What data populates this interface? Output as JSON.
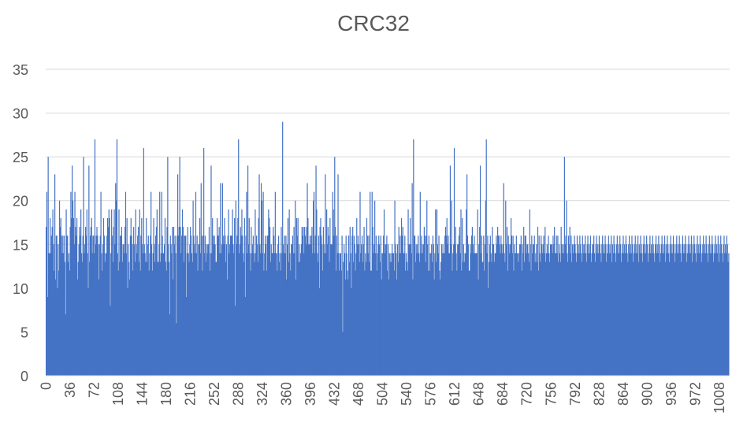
{
  "chart_data": {
    "type": "bar",
    "title": "CRC32",
    "xlabel": "",
    "ylabel": "",
    "ylim": [
      0,
      35
    ],
    "yticks": [
      0,
      5,
      10,
      15,
      20,
      25,
      30,
      35
    ],
    "x_range": [
      0,
      1023
    ],
    "xticks": [
      0,
      36,
      72,
      108,
      144,
      180,
      216,
      252,
      288,
      324,
      360,
      396,
      432,
      468,
      504,
      540,
      576,
      612,
      648,
      684,
      720,
      756,
      792,
      828,
      864,
      900,
      936,
      972,
      1008
    ],
    "grid": true,
    "bar_color": "#4472c4",
    "note": "1024 buckets (0-1023); values estimated from the image, mostly between 9 and 27 with a peak of 29 near x=350.",
    "values": [
      17,
      21,
      9,
      25,
      14,
      14,
      18,
      14,
      16,
      17,
      19,
      15,
      12,
      23,
      11,
      16,
      16,
      10,
      15,
      12,
      20,
      17,
      18,
      16,
      14,
      16,
      14,
      16,
      13,
      7,
      19,
      16,
      16,
      13,
      14,
      12,
      17,
      21,
      18,
      24,
      20,
      18,
      15,
      21,
      17,
      16,
      18,
      11,
      13,
      15,
      17,
      16,
      19,
      14,
      13,
      16,
      25,
      14,
      15,
      17,
      16,
      19,
      14,
      10,
      24,
      13,
      16,
      17,
      18,
      14,
      16,
      16,
      14,
      27,
      15,
      16,
      17,
      16,
      15,
      11,
      15,
      16,
      21,
      14,
      12,
      15,
      18,
      16,
      13,
      14,
      14,
      16,
      18,
      17,
      19,
      18,
      8,
      14,
      19,
      16,
      13,
      17,
      19,
      15,
      22,
      20,
      27,
      14,
      12,
      19,
      13,
      16,
      16,
      17,
      13,
      15,
      15,
      14,
      17,
      21,
      14,
      18,
      10,
      15,
      13,
      11,
      16,
      18,
      16,
      15,
      12,
      17,
      15,
      13,
      19,
      15,
      14,
      16,
      17,
      13,
      19,
      12,
      16,
      18,
      15,
      14,
      26,
      15,
      14,
      13,
      18,
      13,
      15,
      16,
      12,
      14,
      16,
      21,
      15,
      12,
      14,
      18,
      15,
      13,
      16,
      17,
      19,
      13,
      13,
      15,
      21,
      13,
      14,
      21,
      16,
      14,
      14,
      15,
      18,
      13,
      12,
      17,
      25,
      15,
      13,
      7,
      16,
      15,
      14,
      17,
      11,
      17,
      15,
      16,
      14,
      6,
      16,
      23,
      16,
      17,
      25,
      17,
      14,
      16,
      19,
      17,
      13,
      16,
      16,
      16,
      9,
      14,
      17,
      14,
      13,
      15,
      17,
      16,
      14,
      13,
      20,
      16,
      15,
      14,
      21,
      14,
      16,
      12,
      15,
      15,
      18,
      14,
      22,
      16,
      12,
      16,
      26,
      14,
      16,
      13,
      15,
      14,
      15,
      15,
      17,
      12,
      14,
      24,
      14,
      18,
      16,
      15,
      16,
      15,
      13,
      13,
      18,
      16,
      16,
      17,
      14,
      22,
      14,
      15,
      22,
      16,
      15,
      18,
      16,
      13,
      15,
      11,
      16,
      19,
      14,
      15,
      16,
      16,
      16,
      19,
      15,
      14,
      18,
      8,
      20,
      15,
      16,
      18,
      27,
      14,
      15,
      17,
      16,
      19,
      16,
      14,
      13,
      18,
      9,
      16,
      21,
      14,
      24,
      15,
      18,
      14,
      12,
      17,
      14,
      15,
      16,
      14,
      13,
      19,
      14,
      16,
      15,
      13,
      18,
      23,
      15,
      14,
      22,
      20,
      14,
      21,
      12,
      14,
      16,
      15,
      12,
      16,
      16,
      19,
      18,
      17,
      13,
      15,
      14,
      14,
      17,
      16,
      14,
      21,
      14,
      14,
      12,
      15,
      16,
      13,
      14,
      12,
      17,
      14,
      29,
      15,
      14,
      16,
      14,
      16,
      11,
      15,
      18,
      13,
      19,
      14,
      12,
      15,
      15,
      16,
      14,
      17,
      14,
      20,
      11,
      18,
      16,
      18,
      13,
      15,
      13,
      14,
      15,
      17,
      16,
      17,
      14,
      17,
      16,
      15,
      17,
      22,
      18,
      15,
      15,
      16,
      15,
      16,
      17,
      14,
      20,
      21,
      14,
      16,
      24,
      19,
      14,
      13,
      16,
      10,
      17,
      18,
      16,
      15,
      12,
      17,
      14,
      15,
      23,
      14,
      19,
      15,
      17,
      16,
      13,
      18,
      15,
      15,
      15,
      21,
      19,
      16,
      25,
      17,
      12,
      16,
      14,
      23,
      14,
      12,
      14,
      14,
      12,
      16,
      5,
      13,
      15,
      14,
      11,
      16,
      14,
      12,
      11,
      16,
      13,
      17,
      14,
      10,
      16,
      17,
      13,
      16,
      15,
      12,
      14,
      18,
      15,
      16,
      15,
      13,
      21,
      14,
      15,
      16,
      13,
      15,
      17,
      12,
      14,
      13,
      18,
      16,
      14,
      16,
      13,
      21,
      12,
      12,
      21,
      17,
      14,
      15,
      20,
      14,
      16,
      12,
      14,
      15,
      16,
      15,
      13,
      16,
      11,
      14,
      14,
      16,
      19,
      14,
      15,
      15,
      16,
      12,
      15,
      11,
      14,
      13,
      14,
      13,
      15,
      14,
      14,
      12,
      20,
      15,
      14,
      11,
      15,
      13,
      17,
      14,
      16,
      14,
      18,
      16,
      17,
      14,
      14,
      16,
      12,
      14,
      13,
      12,
      19,
      15,
      15,
      18,
      15,
      14,
      22,
      11,
      27,
      16,
      16,
      13,
      15,
      14,
      15,
      16,
      14,
      13,
      21,
      14,
      16,
      15,
      14,
      15,
      17,
      16,
      13,
      16,
      20,
      15,
      12,
      16,
      12,
      14,
      14,
      15,
      13,
      16,
      15,
      11,
      14,
      19,
      13,
      19,
      15,
      14,
      16,
      12,
      11,
      13,
      15,
      14,
      15,
      14,
      14,
      16,
      17,
      16,
      18,
      15,
      16,
      14,
      14,
      24,
      15,
      20,
      12,
      14,
      15,
      26,
      15,
      17,
      14,
      12,
      15,
      15,
      16,
      17,
      14,
      19,
      12,
      18,
      13,
      15,
      13,
      14,
      14,
      19,
      23,
      16,
      15,
      12,
      12,
      15,
      14,
      16,
      17,
      15,
      14,
      16,
      14,
      14,
      14,
      14,
      19,
      11,
      15,
      17,
      24,
      14,
      16,
      13,
      13,
      16,
      12,
      15,
      20,
      27,
      14,
      16,
      10,
      13,
      15,
      16,
      14,
      13,
      17,
      15,
      15,
      13,
      14,
      14,
      16,
      15,
      17,
      16,
      16,
      15,
      14,
      16,
      15,
      14,
      15,
      22,
      14,
      13,
      20,
      15,
      17,
      12,
      16,
      15,
      14,
      15,
      18,
      16,
      14,
      16,
      12,
      15,
      14,
      14,
      16,
      14,
      14,
      13,
      14,
      15,
      15,
      16,
      12,
      15,
      14,
      17,
      13,
      16,
      16,
      14,
      15,
      15,
      14,
      13,
      19,
      15,
      12,
      16,
      14,
      15,
      15,
      16,
      13,
      14,
      15,
      13,
      17,
      12,
      16,
      14,
      13,
      16,
      15,
      14,
      15,
      16,
      14,
      17,
      13,
      14,
      15,
      14,
      16,
      14,
      13,
      15,
      15,
      15,
      14,
      16,
      15,
      17,
      14,
      14,
      16,
      14,
      16,
      13,
      15,
      14,
      13,
      17,
      15,
      14,
      15,
      14,
      25,
      15,
      16,
      20,
      14,
      13,
      16,
      15,
      17,
      14,
      16,
      13,
      15,
      14,
      15,
      16,
      15,
      14,
      13,
      16,
      14,
      15,
      14,
      16,
      15,
      14,
      13,
      16,
      15,
      14,
      15,
      16,
      14,
      13,
      15,
      16,
      14,
      15,
      14,
      16,
      13,
      14,
      15,
      15,
      16,
      14,
      13,
      15,
      16,
      14,
      15,
      14,
      16,
      15,
      14,
      13,
      15,
      16,
      14,
      15,
      14,
      16,
      15,
      13,
      14,
      15,
      16,
      14,
      15,
      14,
      16,
      13,
      15,
      14,
      16,
      15,
      14,
      13,
      15,
      16,
      14,
      15,
      14,
      16,
      15,
      13,
      14,
      15,
      16,
      14,
      15,
      14,
      16,
      15,
      14,
      13,
      15,
      16,
      14,
      15,
      14,
      16,
      15,
      13,
      14,
      15,
      16,
      14,
      15,
      14,
      16,
      13,
      15,
      14,
      16,
      15,
      14,
      13,
      15,
      16,
      14,
      15,
      14,
      16,
      15,
      13,
      14,
      15,
      16,
      14,
      15,
      14,
      16,
      15,
      14,
      13,
      15,
      16,
      14,
      15,
      14,
      16,
      15,
      13,
      14,
      15,
      16,
      14,
      15,
      14,
      16,
      13,
      15,
      14,
      16,
      15,
      14,
      13,
      15,
      16,
      14,
      15,
      14,
      16,
      15,
      13,
      14,
      15,
      16,
      14,
      15,
      14,
      16,
      15,
      14,
      13,
      15,
      16,
      14,
      15,
      14,
      16,
      15,
      13,
      14,
      15,
      16,
      14,
      15,
      14,
      16,
      13,
      15,
      14,
      16,
      15,
      14,
      13,
      15,
      16,
      14,
      15,
      14,
      16,
      15,
      13,
      14,
      15,
      16,
      14,
      15,
      14,
      16,
      15,
      14,
      13,
      15,
      16,
      14,
      15,
      14,
      16,
      15,
      13,
      14,
      15,
      16,
      14,
      15,
      14,
      16,
      13,
      15,
      14,
      16,
      15,
      14,
      13,
      15,
      16,
      14,
      15,
      14,
      16,
      15,
      13,
      14
    ]
  }
}
